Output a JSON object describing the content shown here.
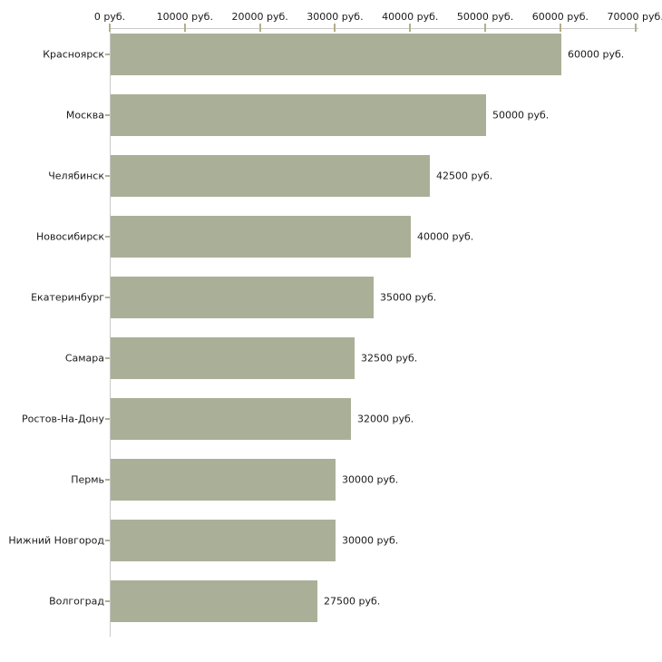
{
  "chart_data": {
    "type": "bar",
    "orientation": "horizontal",
    "title": "",
    "xlabel": "",
    "ylabel": "",
    "currency_suffix": "руб.",
    "categories": [
      "Красноярск",
      "Москва",
      "Челябинск",
      "Новосибирск",
      "Екатеринбург",
      "Самара",
      "Ростов-На-Дону",
      "Пермь",
      "Нижний Новгород",
      "Волгоград"
    ],
    "values": [
      60000,
      50000,
      42500,
      40000,
      35000,
      32500,
      32000,
      30000,
      30000,
      27500
    ],
    "value_labels": [
      "60000 руб.",
      "50000 руб.",
      "42500 руб.",
      "40000 руб.",
      "35000 руб.",
      "32500 руб.",
      "32000 руб.",
      "30000 руб.",
      "30000 руб.",
      "27500 руб."
    ],
    "x_ticks": [
      0,
      10000,
      20000,
      30000,
      40000,
      50000,
      60000,
      70000
    ],
    "x_tick_labels": [
      "0 руб.",
      "10000 руб.",
      "20000 руб.",
      "30000 руб.",
      "40000 руб.",
      "50000 руб.",
      "60000 руб.",
      "70000 руб."
    ],
    "xlim": [
      0,
      70000
    ],
    "grid": false,
    "legend_position": "none",
    "axis_position": "top",
    "colors": {
      "bar": "#aab097",
      "tick": "#b3af8a",
      "axis_line": "#c9c9c9",
      "text": "#1a1a1a",
      "background": "#ffffff"
    }
  }
}
